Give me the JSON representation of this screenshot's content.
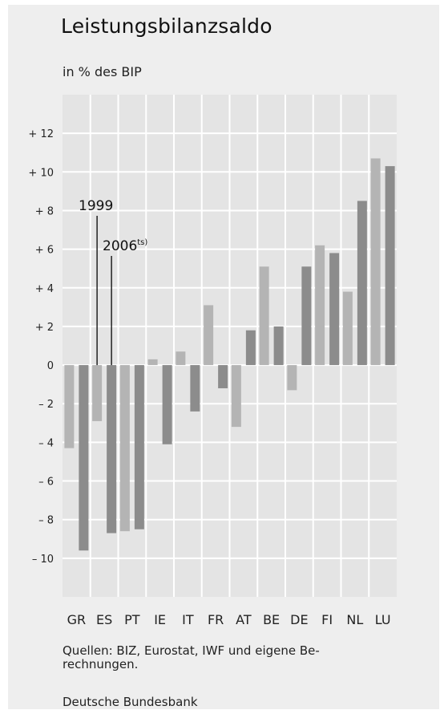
{
  "title": "Leistungsbilanzsaldo",
  "subtitle": "in % des BIP",
  "source_note": "Quellen: BIZ, Eurostat, IWF und eigene Be-rechnungen.",
  "source_note_lines": [
    "Quellen: BIZ, Eurostat, IWF und eigene Be-",
    "rechnungen."
  ],
  "publisher": "Deutsche Bundesbank",
  "colors": {
    "panel": "#eeeeee",
    "plot_bg": "#e4e4e4",
    "grid": "#ffffff",
    "series_1999": "#b4b4b4",
    "series_2006": "#8c8c8c",
    "text": "#222222"
  },
  "chart_data": {
    "type": "bar",
    "title": "Leistungsbilanzsaldo",
    "subtitle": "in % des BIP",
    "categories": [
      "GR",
      "ES",
      "PT",
      "IE",
      "IT",
      "FR",
      "AT",
      "BE",
      "DE",
      "FI",
      "NL",
      "LU"
    ],
    "series": [
      {
        "name": "1999",
        "values": [
          -4.3,
          -2.9,
          -8.6,
          0.3,
          0.7,
          3.1,
          -3.2,
          5.1,
          -1.3,
          6.2,
          3.8,
          10.7
        ]
      },
      {
        "name": "2006ts)",
        "values": [
          -9.6,
          -8.7,
          -8.5,
          -4.1,
          -2.4,
          -1.2,
          1.8,
          2.0,
          5.1,
          5.8,
          8.5,
          10.3
        ]
      }
    ],
    "ylim": [
      -12,
      14
    ],
    "y_ticks": [
      12,
      10,
      8,
      6,
      4,
      2,
      0,
      -2,
      -4,
      -6,
      -8,
      -10
    ],
    "y_tick_labels": [
      "+ 12",
      "+ 10",
      "+  8",
      "+  6",
      "+  4",
      "+  2",
      "0",
      "–  2",
      "–  4",
      "–  6",
      "–  8",
      "– 10"
    ],
    "annotations": [
      {
        "text": "1999",
        "series": 0,
        "category": "ES"
      },
      {
        "text": "2006",
        "superscript": "ts)",
        "series": 1,
        "category": "ES"
      }
    ],
    "grid": true,
    "legend": "annotations"
  }
}
